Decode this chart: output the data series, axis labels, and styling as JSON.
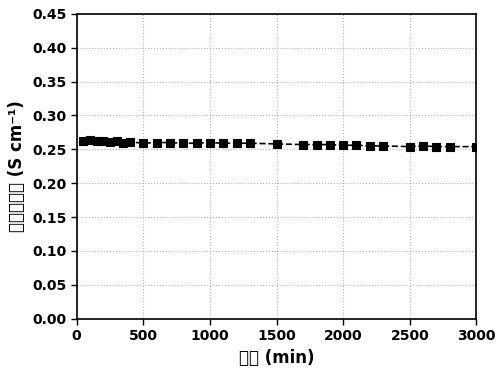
{
  "x": [
    50,
    100,
    150,
    200,
    250,
    300,
    350,
    400,
    500,
    600,
    700,
    800,
    900,
    1000,
    1100,
    1200,
    1300,
    1500,
    1700,
    1800,
    1900,
    2000,
    2100,
    2200,
    2300,
    2500,
    2600,
    2700,
    2800,
    3000
  ],
  "y": [
    0.262,
    0.264,
    0.263,
    0.262,
    0.261,
    0.262,
    0.26,
    0.261,
    0.259,
    0.26,
    0.26,
    0.259,
    0.259,
    0.26,
    0.259,
    0.259,
    0.259,
    0.258,
    0.257,
    0.257,
    0.257,
    0.256,
    0.256,
    0.255,
    0.255,
    0.254,
    0.255,
    0.254,
    0.254,
    0.254
  ],
  "xlabel_zh": "时间",
  "xlabel_en": " (min)",
  "ylabel_zh": "质子传导率",
  "ylabel_en": " (S cm⁻¹)",
  "xlim": [
    0,
    3000
  ],
  "ylim": [
    0.0,
    0.45
  ],
  "xticks": [
    0,
    500,
    1000,
    1500,
    2000,
    2500,
    3000
  ],
  "yticks": [
    0.0,
    0.05,
    0.1,
    0.15,
    0.2,
    0.25,
    0.3,
    0.35,
    0.4,
    0.45
  ],
  "line_color": "#000000",
  "marker": "s",
  "marker_size": 6,
  "line_style": "--",
  "line_width": 1.2,
  "background_color": "#ffffff",
  "grid_color": "#999999",
  "tick_fontsize": 10,
  "label_fontsize": 12
}
